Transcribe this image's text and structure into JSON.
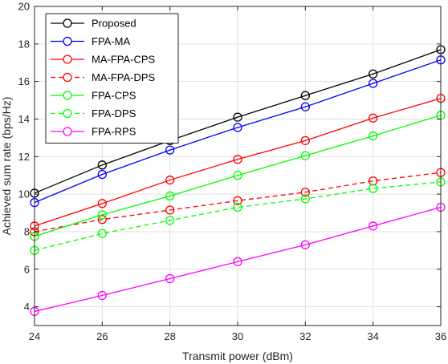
{
  "chart_data": {
    "type": "line",
    "xlabel": "Transmit power (dBm)",
    "ylabel": "Achieved sum rate (bps/Hz)",
    "xlim": [
      24,
      36
    ],
    "ylim": [
      3,
      20
    ],
    "xticks": [
      24,
      26,
      28,
      30,
      32,
      34,
      36
    ],
    "yticks": [
      4,
      6,
      8,
      10,
      12,
      14,
      16,
      18,
      20
    ],
    "grid": true,
    "legend_position": "top-left",
    "x": [
      24,
      26,
      28,
      30,
      32,
      34,
      36
    ],
    "series": [
      {
        "name": "Proposed",
        "color": "#000000",
        "dashed": false,
        "values": [
          10.05,
          11.55,
          12.85,
          14.1,
          15.25,
          16.4,
          17.7
        ]
      },
      {
        "name": "FPA-MA",
        "color": "#0000ff",
        "dashed": false,
        "values": [
          9.55,
          11.05,
          12.35,
          13.55,
          14.65,
          15.9,
          17.15
        ]
      },
      {
        "name": "MA-FPA-CPS",
        "color": "#ff0000",
        "dashed": false,
        "values": [
          8.3,
          9.5,
          10.75,
          11.85,
          12.85,
          14.05,
          15.1
        ]
      },
      {
        "name": "MA-FPA-DPS",
        "color": "#ff0000",
        "dashed": true,
        "values": [
          8.0,
          8.65,
          9.15,
          9.65,
          10.1,
          10.7,
          11.15
        ]
      },
      {
        "name": "FPA-CPS",
        "color": "#00ff00",
        "dashed": false,
        "values": [
          7.75,
          8.9,
          9.9,
          11.0,
          12.05,
          13.1,
          14.2
        ]
      },
      {
        "name": "FPA-DPS",
        "color": "#00ff00",
        "dashed": true,
        "values": [
          7.0,
          7.9,
          8.6,
          9.3,
          9.75,
          10.3,
          10.65
        ]
      },
      {
        "name": "FPA-RPS",
        "color": "#ff00ff",
        "dashed": false,
        "values": [
          3.75,
          4.6,
          5.5,
          6.4,
          7.3,
          8.3,
          9.3
        ]
      }
    ]
  }
}
